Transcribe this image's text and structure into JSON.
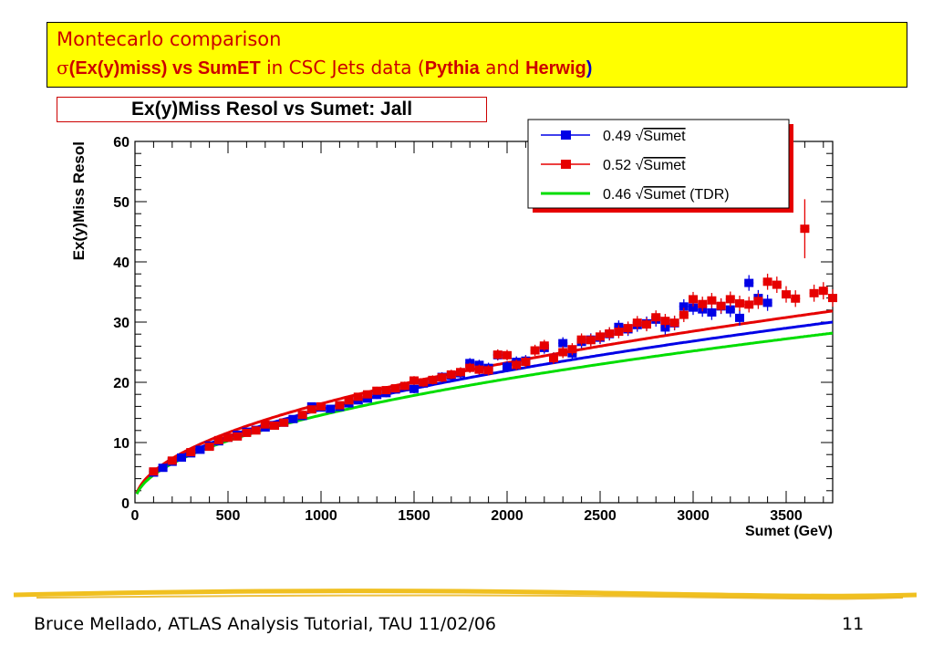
{
  "header": {
    "line1": "Montecarlo comparison",
    "line2_sigma": "σ",
    "line2_quantity": "(Ex(y)miss) vs SumET",
    "line2_mid": " in CSC  Jets data (",
    "line2_pythia": "Pythia",
    "line2_and": " and ",
    "line2_herwig": "Herwig",
    "line2_close": ")"
  },
  "footer": {
    "text": "Bruce Mellado, ATLAS Analysis Tutorial, TAU 11/02/06",
    "page": "11"
  },
  "colors": {
    "header_bg": "#ffff00",
    "header_text": "#cc0000",
    "blue_series": "#0000e6",
    "red_series": "#e60000",
    "green_series": "#00dd00",
    "divider": "#f0c020"
  },
  "chart_data": {
    "type": "scatter",
    "title": "Ex(y)Miss Resol vs Sumet: Jall",
    "xlabel": "Sumet (GeV)",
    "ylabel": "Ex(y)Miss Resol",
    "xlim": [
      0,
      3750
    ],
    "ylim": [
      0,
      60
    ],
    "xticks": [
      0,
      500,
      1000,
      1500,
      2000,
      2500,
      3000,
      3500
    ],
    "yticks": [
      0,
      10,
      20,
      30,
      40,
      50,
      60
    ],
    "grid": false,
    "legend_position": "top-right",
    "series": [
      {
        "name": "0.49 √Sumet",
        "kind": "points",
        "color": "#0000e6",
        "points": [
          [
            100,
            5.0
          ],
          [
            150,
            5.8
          ],
          [
            200,
            6.8
          ],
          [
            250,
            7.5
          ],
          [
            300,
            8.2
          ],
          [
            350,
            8.8
          ],
          [
            400,
            9.5
          ],
          [
            450,
            10.2
          ],
          [
            500,
            10.8
          ],
          [
            550,
            11.3
          ],
          [
            600,
            11.8
          ],
          [
            650,
            12.1
          ],
          [
            700,
            12.5
          ],
          [
            750,
            12.9
          ],
          [
            800,
            13.3
          ],
          [
            850,
            13.9
          ],
          [
            900,
            14.4
          ],
          [
            950,
            16.0
          ],
          [
            1000,
            15.8
          ],
          [
            1050,
            15.6
          ],
          [
            1100,
            15.9
          ],
          [
            1150,
            16.5
          ],
          [
            1200,
            17.0
          ],
          [
            1250,
            17.3
          ],
          [
            1300,
            17.9
          ],
          [
            1350,
            18.2
          ],
          [
            1400,
            18.8
          ],
          [
            1450,
            19.2
          ],
          [
            1500,
            18.9
          ],
          [
            1550,
            19.8
          ],
          [
            1600,
            20.3
          ],
          [
            1650,
            20.9
          ],
          [
            1700,
            21.1
          ],
          [
            1750,
            21.5
          ],
          [
            1800,
            23.2
          ],
          [
            1850,
            22.9
          ],
          [
            1900,
            22.4
          ],
          [
            1950,
            24.5
          ],
          [
            2000,
            22.6
          ],
          [
            2050,
            23.4
          ],
          [
            2100,
            23.6
          ],
          [
            2200,
            25.7
          ],
          [
            2250,
            24.0
          ],
          [
            2300,
            26.5
          ],
          [
            2350,
            24.8
          ],
          [
            2400,
            26.7
          ],
          [
            2450,
            27.1
          ],
          [
            2500,
            27.4
          ],
          [
            2550,
            28.0
          ],
          [
            2600,
            29.2
          ],
          [
            2650,
            28.8
          ],
          [
            2700,
            29.5
          ],
          [
            2750,
            29.8
          ],
          [
            2800,
            30.4
          ],
          [
            2850,
            29.1
          ],
          [
            2900,
            29.8
          ],
          [
            2950,
            32.6
          ],
          [
            3000,
            32.4
          ],
          [
            3050,
            32.1
          ],
          [
            3100,
            31.6
          ],
          [
            3150,
            32.6
          ],
          [
            3200,
            32.1
          ],
          [
            3250,
            30.7
          ],
          [
            3300,
            36.5
          ],
          [
            3350,
            34.0
          ],
          [
            3400,
            33.2
          ]
        ]
      },
      {
        "name": "0.52 √Sumet",
        "kind": "points",
        "color": "#e60000",
        "points": [
          [
            100,
            5.2
          ],
          [
            200,
            7.0
          ],
          [
            300,
            8.4
          ],
          [
            400,
            9.3
          ],
          [
            450,
            10.4
          ],
          [
            500,
            10.8
          ],
          [
            550,
            11.0
          ],
          [
            600,
            11.6
          ],
          [
            650,
            12.0
          ],
          [
            700,
            13.0
          ],
          [
            750,
            12.8
          ],
          [
            800,
            13.3
          ],
          [
            900,
            14.6
          ],
          [
            950,
            15.5
          ],
          [
            1000,
            16.0
          ],
          [
            1100,
            16.2
          ],
          [
            1150,
            17.0
          ],
          [
            1200,
            17.6
          ],
          [
            1250,
            18.0
          ],
          [
            1300,
            18.6
          ],
          [
            1350,
            18.7
          ],
          [
            1400,
            19.0
          ],
          [
            1450,
            19.4
          ],
          [
            1500,
            20.3
          ],
          [
            1550,
            20.0
          ],
          [
            1600,
            20.4
          ],
          [
            1650,
            20.8
          ],
          [
            1700,
            21.3
          ],
          [
            1750,
            21.7
          ],
          [
            1800,
            22.4
          ],
          [
            1850,
            22.1
          ],
          [
            1900,
            22.0
          ],
          [
            1950,
            24.6
          ],
          [
            2000,
            24.5
          ],
          [
            2050,
            22.9
          ],
          [
            2100,
            23.4
          ],
          [
            2150,
            25.3
          ],
          [
            2200,
            26.1
          ],
          [
            2250,
            24.0
          ],
          [
            2300,
            25.0
          ],
          [
            2350,
            25.5
          ],
          [
            2400,
            27.1
          ],
          [
            2450,
            27.0
          ],
          [
            2500,
            27.6
          ],
          [
            2550,
            28.1
          ],
          [
            2600,
            28.4
          ],
          [
            2650,
            29.0
          ],
          [
            2700,
            29.9
          ],
          [
            2750,
            29.6
          ],
          [
            2800,
            30.8
          ],
          [
            2850,
            30.2
          ],
          [
            2900,
            29.9
          ],
          [
            2950,
            31.2
          ],
          [
            3000,
            33.8
          ],
          [
            3050,
            33.0
          ],
          [
            3100,
            33.6
          ],
          [
            3150,
            32.7
          ],
          [
            3200,
            33.8
          ],
          [
            3250,
            33.1
          ],
          [
            3300,
            32.9
          ],
          [
            3350,
            33.5
          ],
          [
            3400,
            36.7
          ],
          [
            3450,
            36.2
          ],
          [
            3500,
            34.6
          ],
          [
            3550,
            33.9
          ],
          [
            3600,
            45.5
          ],
          [
            3650,
            34.8
          ],
          [
            3700,
            35.2
          ],
          [
            3750,
            34.0
          ]
        ]
      },
      {
        "name": "0.46 √Sumet (TDR)",
        "kind": "curve",
        "color": "#00dd00",
        "coefficient": 0.46
      }
    ],
    "fit_curves": [
      {
        "name": "0.49 √Sumet",
        "color": "#0000e6",
        "coefficient": 0.49
      },
      {
        "name": "0.52 √Sumet",
        "color": "#e60000",
        "coefficient": 0.52
      }
    ],
    "legend": [
      {
        "coef": "0.49",
        "rad": "Sumet",
        "suffix": "",
        "color": "#0000e6",
        "marker": true
      },
      {
        "coef": "0.52",
        "rad": "Sumet",
        "suffix": "",
        "color": "#e60000",
        "marker": true
      },
      {
        "coef": "0.46",
        "rad": "Sumet",
        "suffix": " (TDR)",
        "color": "#00dd00",
        "marker": false
      }
    ]
  }
}
